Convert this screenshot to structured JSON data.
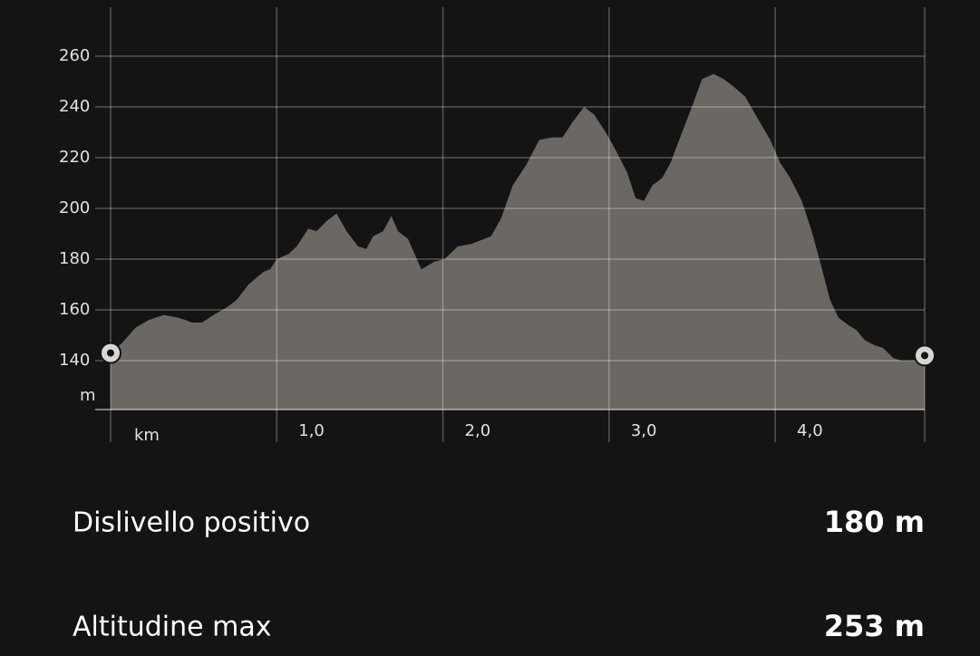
{
  "chart_data": {
    "type": "area",
    "color": "#6b6864",
    "grid": true,
    "y_label": "m",
    "x": [
      0,
      0.07,
      0.15,
      0.23,
      0.32,
      0.4,
      0.45,
      0.49,
      0.55,
      0.62,
      0.7,
      0.76,
      0.83,
      0.92,
      0.96,
      1.0,
      1.07,
      1.12,
      1.19,
      1.24,
      1.3,
      1.36,
      1.42,
      1.49,
      1.54,
      1.58,
      1.64,
      1.69,
      1.73,
      1.79,
      1.87,
      1.95,
      2.01,
      2.09,
      2.17,
      2.25,
      2.29,
      2.35,
      2.42,
      2.5,
      2.58,
      2.66,
      2.72,
      2.78,
      2.85,
      2.91,
      2.98,
      3.04,
      3.11,
      3.16,
      3.21,
      3.26,
      3.32,
      3.37,
      3.44,
      3.51,
      3.56,
      3.63,
      3.69,
      3.75,
      3.82,
      3.89,
      3.97,
      4.03,
      4.09,
      4.16,
      4.22,
      4.27,
      4.33,
      4.38,
      4.44,
      4.49,
      4.54,
      4.6,
      4.65,
      4.71,
      4.76,
      4.84,
      4.9
    ],
    "values": [
      143,
      147,
      153,
      156,
      158,
      157,
      156,
      155,
      155,
      158,
      161,
      164,
      170,
      175,
      176,
      180,
      182,
      185,
      192,
      191,
      195,
      198,
      191,
      185,
      184,
      189,
      191,
      197,
      191,
      188,
      176,
      179,
      180,
      185,
      186,
      188,
      189,
      196,
      209,
      217,
      227,
      228,
      228,
      234,
      240,
      237,
      230,
      223,
      214,
      204,
      203,
      209,
      212,
      218,
      230,
      242,
      251,
      253,
      251,
      248,
      244,
      236,
      227,
      218,
      212,
      203,
      191,
      179,
      164,
      157,
      154,
      152,
      148,
      146,
      145,
      141,
      140,
      140,
      142
    ],
    "xlim": [
      0,
      4.9
    ],
    "ylim": [
      120.7,
      279.3
    ],
    "yticks": [
      140,
      160,
      180,
      200,
      220,
      240,
      260
    ],
    "xticks": [
      {
        "value": 0,
        "label": "km"
      },
      {
        "value": 1,
        "label": "1,0"
      },
      {
        "value": 2,
        "label": "2,0"
      },
      {
        "value": 3,
        "label": "3,0"
      },
      {
        "value": 4,
        "label": "4,0"
      }
    ]
  },
  "stats": [
    {
      "label": "Dislivello positivo",
      "value": "180 m"
    },
    {
      "label": "Altitudine max",
      "value": "253 m"
    }
  ]
}
